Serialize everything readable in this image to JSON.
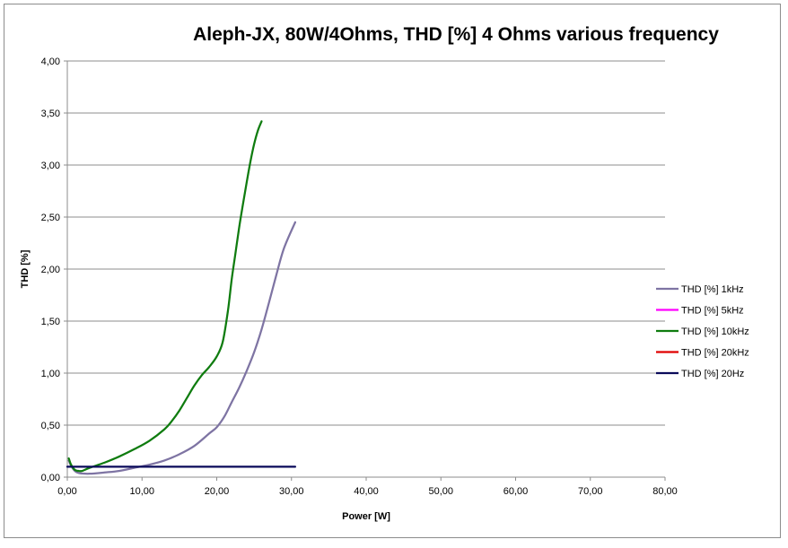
{
  "chart_data": {
    "type": "line",
    "title": "Aleph-JX, 80W/4Ohms, THD [%] 4 Ohms various frequency",
    "xlabel": "Power [W]",
    "ylabel": "THD [%]",
    "xlim": [
      0,
      80
    ],
    "ylim": [
      0,
      4
    ],
    "x_ticks": [
      "0,00",
      "10,00",
      "20,00",
      "30,00",
      "40,00",
      "50,00",
      "60,00",
      "70,00",
      "80,00"
    ],
    "y_ticks": [
      "0,00",
      "0,50",
      "1,00",
      "1,50",
      "2,00",
      "2,50",
      "3,00",
      "3,50",
      "4,00"
    ],
    "grid": {
      "horizontal": true,
      "vertical": false
    },
    "legend_position": "right",
    "series": [
      {
        "name": "THD [%] 1kHz",
        "color": "#7e74a3",
        "points": [
          [
            0.2,
            0.16
          ],
          [
            0.5,
            0.11
          ],
          [
            1,
            0.06
          ],
          [
            1.5,
            0.04
          ],
          [
            2,
            0.035
          ],
          [
            3,
            0.033
          ],
          [
            5,
            0.045
          ],
          [
            7,
            0.06
          ],
          [
            9,
            0.09
          ],
          [
            11,
            0.12
          ],
          [
            13,
            0.16
          ],
          [
            15,
            0.22
          ],
          [
            17,
            0.3
          ],
          [
            19,
            0.42
          ],
          [
            20,
            0.48
          ],
          [
            21,
            0.58
          ],
          [
            22,
            0.72
          ],
          [
            23,
            0.86
          ],
          [
            24,
            1.02
          ],
          [
            25,
            1.2
          ],
          [
            26,
            1.42
          ],
          [
            27,
            1.68
          ],
          [
            28,
            1.95
          ],
          [
            29,
            2.2
          ],
          [
            30.5,
            2.45
          ]
        ]
      },
      {
        "name": "THD [%] 5kHz",
        "color": "#ff00ff",
        "points": []
      },
      {
        "name": "THD [%] 10kHz",
        "color": "#0f7c0f",
        "points": [
          [
            0.2,
            0.18
          ],
          [
            0.5,
            0.12
          ],
          [
            1,
            0.07
          ],
          [
            1.5,
            0.06
          ],
          [
            2,
            0.06
          ],
          [
            3,
            0.09
          ],
          [
            5,
            0.14
          ],
          [
            7,
            0.2
          ],
          [
            9,
            0.27
          ],
          [
            11,
            0.35
          ],
          [
            13,
            0.46
          ],
          [
            14,
            0.54
          ],
          [
            15,
            0.64
          ],
          [
            16,
            0.76
          ],
          [
            17,
            0.88
          ],
          [
            18,
            0.98
          ],
          [
            19,
            1.06
          ],
          [
            20,
            1.16
          ],
          [
            20.8,
            1.3
          ],
          [
            21.5,
            1.6
          ],
          [
            22,
            1.9
          ],
          [
            22.5,
            2.15
          ],
          [
            23,
            2.4
          ],
          [
            23.5,
            2.62
          ],
          [
            24,
            2.83
          ],
          [
            24.5,
            3.03
          ],
          [
            25,
            3.2
          ],
          [
            25.5,
            3.33
          ],
          [
            26,
            3.42
          ]
        ]
      },
      {
        "name": "THD [%] 20kHz",
        "color": "#e00000",
        "points": []
      },
      {
        "name": "THD [%] 20Hz",
        "color": "#0a0a5a",
        "points": [
          [
            0,
            0.1
          ],
          [
            30.5,
            0.1
          ]
        ]
      }
    ]
  }
}
